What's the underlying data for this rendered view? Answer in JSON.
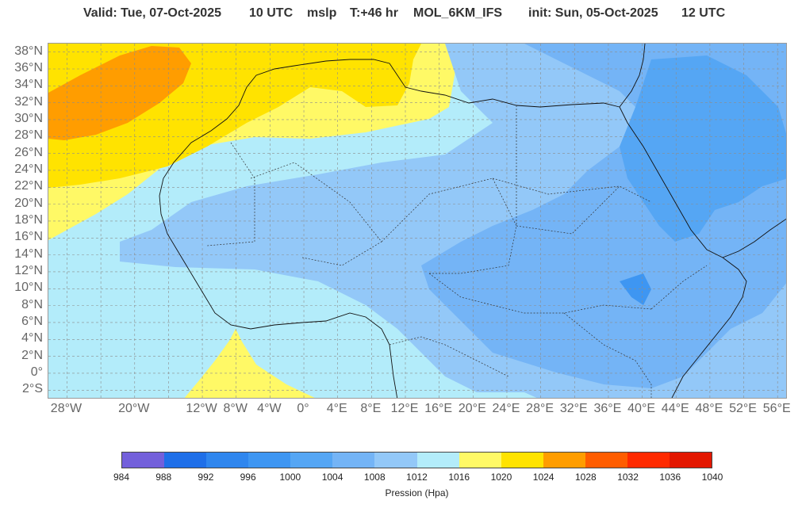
{
  "header": {
    "valid": "Valid: Tue, 07-Oct-2025",
    "time": "10 UTC",
    "field": "mslp",
    "lead": "T:+46 hr",
    "model": "MOL_6KM_IFS",
    "init": "init: Sun, 05-Oct-2025",
    "init_time": "12 UTC"
  },
  "map": {
    "lat_labels": [
      "38°N",
      "36°N",
      "34°N",
      "32°N",
      "30°N",
      "28°N",
      "26°N",
      "24°N",
      "22°N",
      "20°N",
      "18°N",
      "16°N",
      "14°N",
      "12°N",
      "10°N",
      "8°N",
      "6°N",
      "4°N",
      "2°N",
      "0°",
      "2°S"
    ],
    "lon_labels": [
      "28°W",
      "20°W",
      "12°W",
      "8°W",
      "4°W",
      "0°",
      "4°E",
      "8°E",
      "12°E",
      "16°E",
      "20°E",
      "24°E",
      "28°E",
      "32°E",
      "36°E",
      "40°E",
      "44°E",
      "48°E",
      "52°E",
      "56°E"
    ],
    "lon_values": [
      -28,
      -20,
      -12,
      -8,
      -4,
      0,
      4,
      8,
      12,
      16,
      20,
      24,
      28,
      32,
      36,
      40,
      44,
      48,
      52,
      56
    ]
  },
  "colorbar": {
    "title": "Pression (Hpa)",
    "ticks": [
      "984",
      "988",
      "992",
      "996",
      "1000",
      "1004",
      "1008",
      "1012",
      "1016",
      "1020",
      "1024",
      "1028",
      "1032",
      "1036",
      "1040"
    ],
    "colors": [
      "#7360db",
      "#1f6fe8",
      "#2f86ee",
      "#3e96f2",
      "#55a6f4",
      "#74b4f6",
      "#93c8f8",
      "#b3ecfa",
      "#fff966",
      "#ffe300",
      "#ff9d00",
      "#ff5d00",
      "#ff2a00",
      "#e31700"
    ]
  }
}
